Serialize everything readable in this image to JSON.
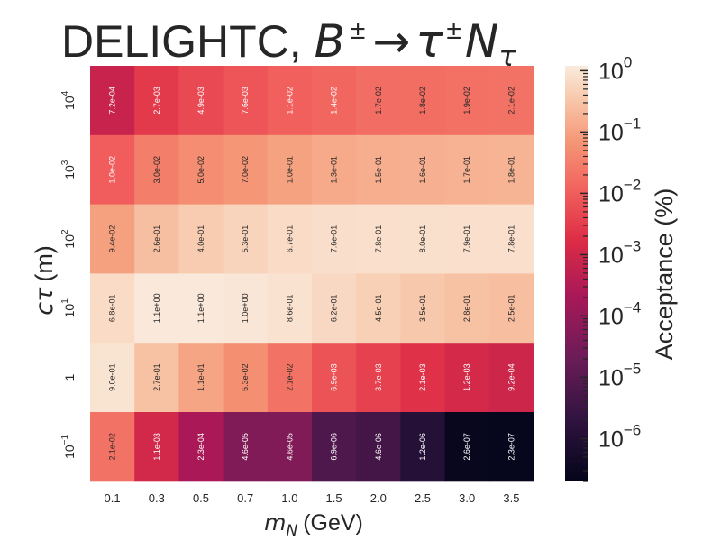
{
  "chart_data": {
    "type": "heatmap",
    "title_parts": {
      "prefix": "DELIGHTC, ",
      "B": "B",
      "pm1": "±",
      "arrow": "→",
      "tau": "τ",
      "pm2": "±",
      "N": "N",
      "sub": "τ"
    },
    "xlabel": {
      "m": "m",
      "sub": "N",
      "unit": "(GeV)"
    },
    "ylabel": {
      "c": "c",
      "tau": "τ",
      "unit": "(m)"
    },
    "x_ticks": [
      "0.1",
      "0.3",
      "0.5",
      "0.7",
      "1.0",
      "1.5",
      "2.0",
      "2.5",
      "3.0",
      "3.5"
    ],
    "y_ticks_top_to_bottom": [
      {
        "base": "10",
        "exp": "4"
      },
      {
        "base": "10",
        "exp": "3"
      },
      {
        "base": "10",
        "exp": "2"
      },
      {
        "base": "10",
        "exp": "1"
      },
      {
        "base": "1",
        "exp": ""
      },
      {
        "base": "10",
        "exp": "−1"
      }
    ],
    "values": [
      [
        "7.2e-04",
        "2.7e-03",
        "4.9e-03",
        "7.6e-03",
        "1.1e-02",
        "1.4e-02",
        "1.7e-02",
        "1.8e-02",
        "1.9e-02",
        "2.1e-02"
      ],
      [
        "1.0e-02",
        "3.0e-02",
        "5.0e-02",
        "7.0e-02",
        "1.0e-01",
        "1.3e-01",
        "1.5e-01",
        "1.6e-01",
        "1.7e-01",
        "1.8e-01"
      ],
      [
        "9.4e-02",
        "2.6e-01",
        "4.0e-01",
        "5.3e-01",
        "6.7e-01",
        "7.6e-01",
        "7.8e-01",
        "8.0e-01",
        "7.9e-01",
        "7.8e-01"
      ],
      [
        "6.8e-01",
        "1.1e+00",
        "1.1e+00",
        "1.0e+00",
        "8.6e-01",
        "6.2e-01",
        "4.5e-01",
        "3.5e-01",
        "2.8e-01",
        "2.5e-01"
      ],
      [
        "9.0e-01",
        "2.7e-01",
        "1.1e-01",
        "5.3e-02",
        "2.1e-02",
        "6.9e-03",
        "3.7e-03",
        "2.1e-03",
        "1.2e-03",
        "9.2e-04"
      ],
      [
        "2.1e-02",
        "1.1e-03",
        "2.3e-04",
        "4.6e-05",
        "4.6e-05",
        "6.9e-06",
        "4.6e-06",
        "1.2e-06",
        "2.6e-07",
        "2.3e-07"
      ]
    ],
    "scale": "log",
    "colormap": "rocket",
    "colorbar": {
      "label": "Acceptance (%)",
      "range": [
        2e-07,
        1.2
      ],
      "ticks": [
        {
          "base": "10",
          "exp": "0"
        },
        {
          "base": "10",
          "exp": "−1"
        },
        {
          "base": "10",
          "exp": "−2"
        },
        {
          "base": "10",
          "exp": "−3"
        },
        {
          "base": "10",
          "exp": "−4"
        },
        {
          "base": "10",
          "exp": "−5"
        },
        {
          "base": "10",
          "exp": "−6"
        }
      ]
    },
    "grid": false
  }
}
